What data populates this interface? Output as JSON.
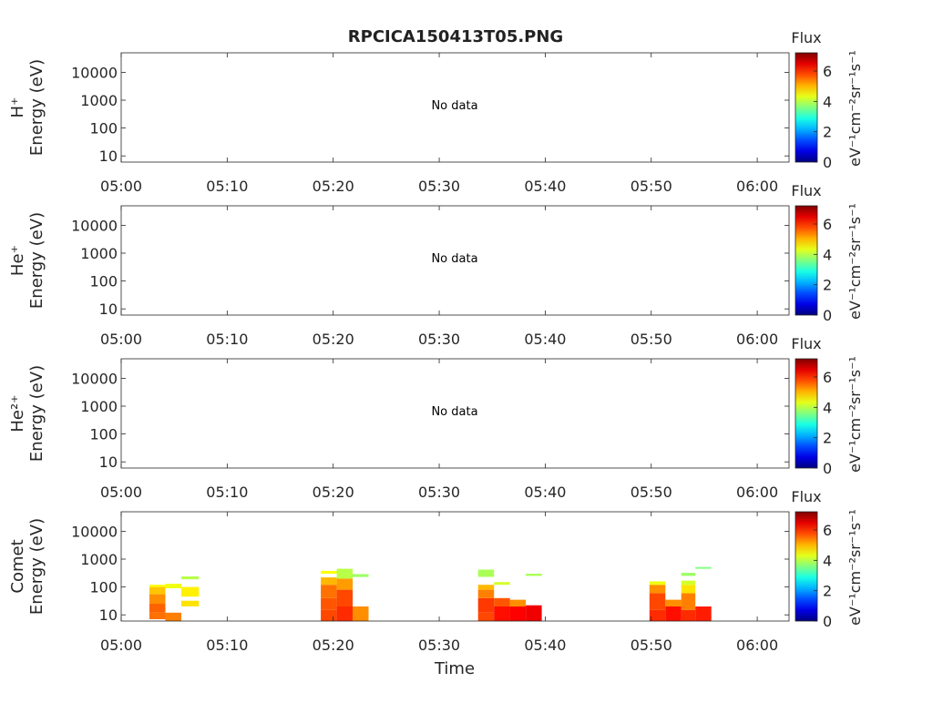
{
  "title": "RPCICA150413T05.PNG",
  "xlabel": "Time",
  "colorbar": {
    "title": "Flux",
    "unit_label": "eV⁻¹cm⁻²sr⁻¹s⁻¹",
    "ticks": [
      "0",
      "2",
      "4",
      "6"
    ],
    "range": [
      0,
      7.2
    ]
  },
  "chart_data": [
    {
      "type": "heatmap",
      "species_label": "H⁺",
      "ylabel": "Energy (eV)",
      "y_scale": "log",
      "ylim": [
        6,
        50000
      ],
      "yticks": [
        10,
        100,
        1000,
        10000
      ],
      "ytick_labels": [
        "10",
        "100",
        "1000",
        "10000"
      ],
      "xlim": [
        "05:00",
        "06:03"
      ],
      "xtick_labels": [
        "05:00",
        "05:10",
        "05:20",
        "05:30",
        "05:40",
        "05:50",
        "06:00"
      ],
      "annotation": "No data",
      "cells": []
    },
    {
      "type": "heatmap",
      "species_label": "He⁺",
      "ylabel": "Energy (eV)",
      "y_scale": "log",
      "ylim": [
        6,
        50000
      ],
      "yticks": [
        10,
        100,
        1000,
        10000
      ],
      "ytick_labels": [
        "10",
        "100",
        "1000",
        "10000"
      ],
      "xlim": [
        "05:00",
        "06:03"
      ],
      "xtick_labels": [
        "05:00",
        "05:10",
        "05:20",
        "05:30",
        "05:40",
        "05:50",
        "06:00"
      ],
      "annotation": "No data",
      "cells": []
    },
    {
      "type": "heatmap",
      "species_label": "He²⁺",
      "ylabel": "Energy (eV)",
      "y_scale": "log",
      "ylim": [
        6,
        50000
      ],
      "yticks": [
        10,
        100,
        1000,
        10000
      ],
      "ytick_labels": [
        "10",
        "100",
        "1000",
        "10000"
      ],
      "xlim": [
        "05:00",
        "06:03"
      ],
      "xtick_labels": [
        "05:00",
        "05:10",
        "05:20",
        "05:30",
        "05:40",
        "05:50",
        "06:00"
      ],
      "annotation": "No data",
      "cells": []
    },
    {
      "type": "heatmap",
      "species_label": "Comet",
      "ylabel": "Energy (eV)",
      "y_scale": "log",
      "ylim": [
        6,
        50000
      ],
      "yticks": [
        10,
        100,
        1000,
        10000
      ],
      "ytick_labels": [
        "10",
        "100",
        "1000",
        "10000"
      ],
      "xlim": [
        "05:00",
        "06:03"
      ],
      "xtick_labels": [
        "05:00",
        "05:10",
        "05:20",
        "05:30",
        "05:40",
        "05:50",
        "06:00"
      ],
      "annotation": "",
      "cells": [
        {
          "t0": "05:02:40",
          "t1": "05:04:10",
          "e0": 7,
          "e1": 12,
          "flux": 5.5
        },
        {
          "t0": "05:02:40",
          "t1": "05:04:10",
          "e0": 12,
          "e1": 25,
          "flux": 5.6
        },
        {
          "t0": "05:02:40",
          "t1": "05:04:10",
          "e0": 25,
          "e1": 55,
          "flux": 5.3
        },
        {
          "t0": "05:02:40",
          "t1": "05:04:10",
          "e0": 55,
          "e1": 100,
          "flux": 4.9
        },
        {
          "t0": "05:02:40",
          "t1": "05:04:10",
          "e0": 100,
          "e1": 120,
          "flux": 4.5
        },
        {
          "t0": "05:04:10",
          "t1": "05:05:40",
          "e0": 6,
          "e1": 12,
          "flux": 5.4
        },
        {
          "t0": "05:04:10",
          "t1": "05:05:40",
          "e0": 90,
          "e1": 130,
          "flux": 4.4
        },
        {
          "t0": "05:05:40",
          "t1": "05:07:20",
          "e0": 20,
          "e1": 32,
          "flux": 4.7
        },
        {
          "t0": "05:05:40",
          "t1": "05:07:20",
          "e0": 45,
          "e1": 100,
          "flux": 4.6
        },
        {
          "t0": "05:05:40",
          "t1": "05:07:20",
          "e0": 190,
          "e1": 240,
          "flux": 4.0
        },
        {
          "t0": "05:18:50",
          "t1": "05:20:20",
          "e0": 6,
          "e1": 15,
          "flux": 5.8
        },
        {
          "t0": "05:18:50",
          "t1": "05:20:20",
          "e0": 15,
          "e1": 40,
          "flux": 5.7
        },
        {
          "t0": "05:18:50",
          "t1": "05:20:20",
          "e0": 40,
          "e1": 120,
          "flux": 5.5
        },
        {
          "t0": "05:18:50",
          "t1": "05:20:20",
          "e0": 120,
          "e1": 220,
          "flux": 5.0
        },
        {
          "t0": "05:18:50",
          "t1": "05:20:20",
          "e0": 300,
          "e1": 380,
          "flux": 4.5
        },
        {
          "t0": "05:20:20",
          "t1": "05:21:50",
          "e0": 6,
          "e1": 20,
          "flux": 6.0
        },
        {
          "t0": "05:20:20",
          "t1": "05:21:50",
          "e0": 20,
          "e1": 80,
          "flux": 5.8
        },
        {
          "t0": "05:20:20",
          "t1": "05:21:50",
          "e0": 80,
          "e1": 200,
          "flux": 5.2
        },
        {
          "t0": "05:20:20",
          "t1": "05:21:50",
          "e0": 200,
          "e1": 450,
          "flux": 4.0
        },
        {
          "t0": "05:21:50",
          "t1": "05:23:20",
          "e0": 6,
          "e1": 20,
          "flux": 5.3
        },
        {
          "t0": "05:21:50",
          "t1": "05:23:20",
          "e0": 230,
          "e1": 290,
          "flux": 3.8
        },
        {
          "t0": "05:33:40",
          "t1": "05:35:10",
          "e0": 6,
          "e1": 12,
          "flux": 5.8
        },
        {
          "t0": "05:33:40",
          "t1": "05:35:10",
          "e0": 12,
          "e1": 40,
          "flux": 5.9
        },
        {
          "t0": "05:33:40",
          "t1": "05:35:10",
          "e0": 40,
          "e1": 80,
          "flux": 5.4
        },
        {
          "t0": "05:33:40",
          "t1": "05:35:10",
          "e0": 80,
          "e1": 120,
          "flux": 5.0
        },
        {
          "t0": "05:33:40",
          "t1": "05:35:10",
          "e0": 230,
          "e1": 420,
          "flux": 3.9
        },
        {
          "t0": "05:35:10",
          "t1": "05:36:40",
          "e0": 6,
          "e1": 20,
          "flux": 6.2
        },
        {
          "t0": "05:35:10",
          "t1": "05:36:40",
          "e0": 20,
          "e1": 40,
          "flux": 5.7
        },
        {
          "t0": "05:35:10",
          "t1": "05:36:40",
          "e0": 120,
          "e1": 150,
          "flux": 4.2
        },
        {
          "t0": "05:36:40",
          "t1": "05:38:10",
          "e0": 6,
          "e1": 20,
          "flux": 6.3
        },
        {
          "t0": "05:36:40",
          "t1": "05:38:10",
          "e0": 20,
          "e1": 35,
          "flux": 5.3
        },
        {
          "t0": "05:38:10",
          "t1": "05:39:40",
          "e0": 6,
          "e1": 22,
          "flux": 6.4
        },
        {
          "t0": "05:38:10",
          "t1": "05:39:40",
          "e0": 250,
          "e1": 300,
          "flux": 3.9
        },
        {
          "t0": "05:49:50",
          "t1": "05:51:20",
          "e0": 6,
          "e1": 15,
          "flux": 6.0
        },
        {
          "t0": "05:49:50",
          "t1": "05:51:20",
          "e0": 15,
          "e1": 60,
          "flux": 5.8
        },
        {
          "t0": "05:49:50",
          "t1": "05:51:20",
          "e0": 60,
          "e1": 120,
          "flux": 5.3
        },
        {
          "t0": "05:49:50",
          "t1": "05:51:20",
          "e0": 120,
          "e1": 160,
          "flux": 4.4
        },
        {
          "t0": "05:51:20",
          "t1": "05:52:50",
          "e0": 6,
          "e1": 20,
          "flux": 6.2
        },
        {
          "t0": "05:51:20",
          "t1": "05:52:50",
          "e0": 20,
          "e1": 35,
          "flux": 5.3
        },
        {
          "t0": "05:52:50",
          "t1": "05:54:10",
          "e0": 6,
          "e1": 15,
          "flux": 6.0
        },
        {
          "t0": "05:52:50",
          "t1": "05:54:10",
          "e0": 15,
          "e1": 60,
          "flux": 5.4
        },
        {
          "t0": "05:52:50",
          "t1": "05:54:10",
          "e0": 60,
          "e1": 120,
          "flux": 4.7
        },
        {
          "t0": "05:52:50",
          "t1": "05:54:10",
          "e0": 120,
          "e1": 170,
          "flux": 4.2
        },
        {
          "t0": "05:52:50",
          "t1": "05:54:10",
          "e0": 250,
          "e1": 320,
          "flux": 3.8
        },
        {
          "t0": "05:54:10",
          "t1": "05:55:40",
          "e0": 6,
          "e1": 20,
          "flux": 6.1
        },
        {
          "t0": "05:54:10",
          "t1": "05:55:40",
          "e0": 450,
          "e1": 520,
          "flux": 3.6
        }
      ]
    }
  ]
}
